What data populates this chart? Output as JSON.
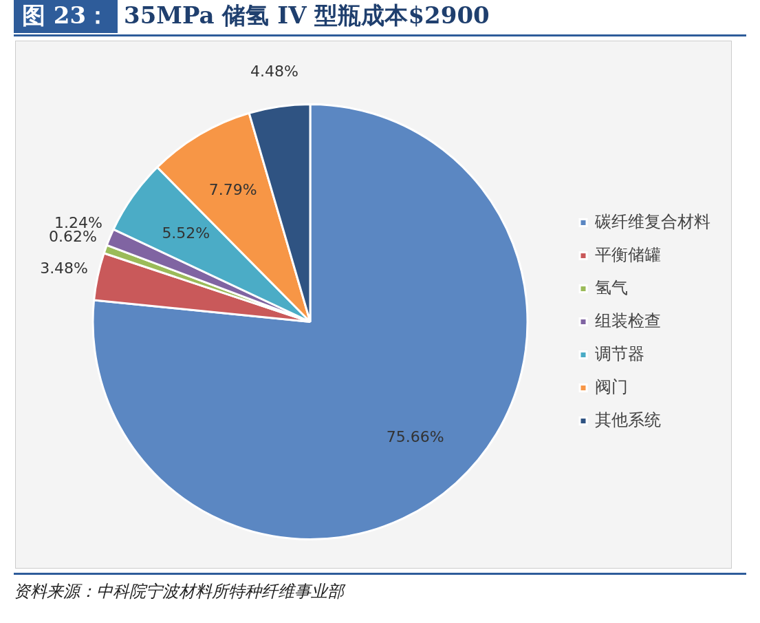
{
  "chart_data": {
    "type": "pie",
    "title": "35MPa 储氢 IV 型瓶成本$2900",
    "subtitle": "图 23：",
    "categories": [
      "碳纤维复合材料",
      "平衡储罐",
      "氢气",
      "组装检查",
      "调节器",
      "阀门",
      "其他系统"
    ],
    "values": [
      75.66,
      3.48,
      0.62,
      1.24,
      5.52,
      7.79,
      4.48
    ],
    "colors": [
      "#5b87c2",
      "#c9595a",
      "#9bbb59",
      "#8064a2",
      "#4bacc6",
      "#f79646",
      "#2f5382"
    ],
    "value_labels": [
      "75.66%",
      "3.48%",
      "0.62%",
      "1.24%",
      "5.52%",
      "7.79%",
      "4.48%"
    ],
    "legend": "right",
    "annotations": [
      "资料来源：中科院宁波材料所特种纤维事业部"
    ]
  }
}
